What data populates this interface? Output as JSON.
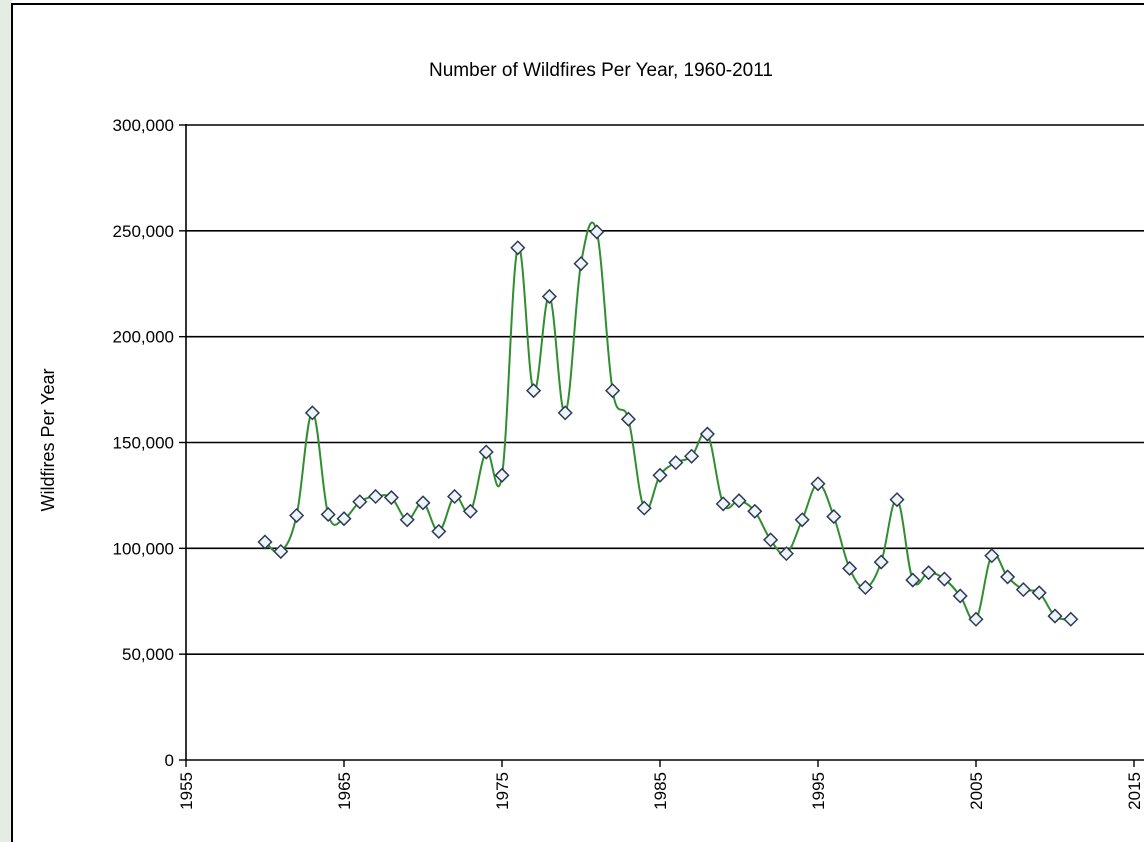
{
  "colors": {
    "line": "#2f8f2f",
    "marker_fill": "#eef4f8",
    "marker_stroke": "#2b3a55",
    "grid": "#000000",
    "left_strip": "#e4ece4"
  },
  "chart_data": {
    "type": "line",
    "title": "Number of Wildfires Per Year, 1960-2011",
    "xlabel": "",
    "ylabel": "Wildfires Per Year",
    "xlim": [
      1955,
      2015
    ],
    "ylim": [
      0,
      300000
    ],
    "x_ticks": [
      1955,
      1965,
      1975,
      1985,
      1995,
      2005,
      2015
    ],
    "y_ticks": [
      0,
      50000,
      100000,
      150000,
      200000,
      250000,
      300000
    ],
    "y_tick_labels": [
      "0",
      "50,000",
      "100,000",
      "150,000",
      "200,000",
      "250,000",
      "300,000"
    ],
    "x_tick_labels": [
      "1955",
      "1965",
      "1975",
      "1985",
      "1995",
      "2005",
      "2015"
    ],
    "grid": "horizontal",
    "legend": "none",
    "series": [
      {
        "marker": "diamond",
        "x": [
          1960,
          1961,
          1962,
          1963,
          1964,
          1965,
          1966,
          1967,
          1968,
          1969,
          1970,
          1971,
          1972,
          1973,
          1974,
          1975,
          1976,
          1977,
          1978,
          1979,
          1980,
          1981,
          1982,
          1983,
          1984,
          1985,
          1986,
          1987,
          1988,
          1989,
          1990,
          1991,
          1992,
          1993,
          1994,
          1995,
          1996,
          1997,
          1998,
          1999,
          2000,
          2001,
          2002,
          2003,
          2004,
          2005,
          2006,
          2007,
          2008,
          2009,
          2010,
          2011
        ],
        "y": [
          103000,
          98500,
          115500,
          164000,
          116000,
          114000,
          122000,
          124500,
          124000,
          113500,
          121500,
          108000,
          124500,
          117500,
          145500,
          134500,
          242000,
          174500,
          219000,
          164000,
          234500,
          249500,
          174500,
          161000,
          119000,
          134500,
          140500,
          143500,
          154000,
          121000,
          122500,
          117500,
          104000,
          97500,
          113500,
          130500,
          115000,
          90500,
          81500,
          93500,
          123000,
          85000,
          88500,
          85500,
          77500,
          66500,
          96500,
          86500,
          80500,
          79000,
          68000,
          66500
        ]
      }
    ]
  }
}
